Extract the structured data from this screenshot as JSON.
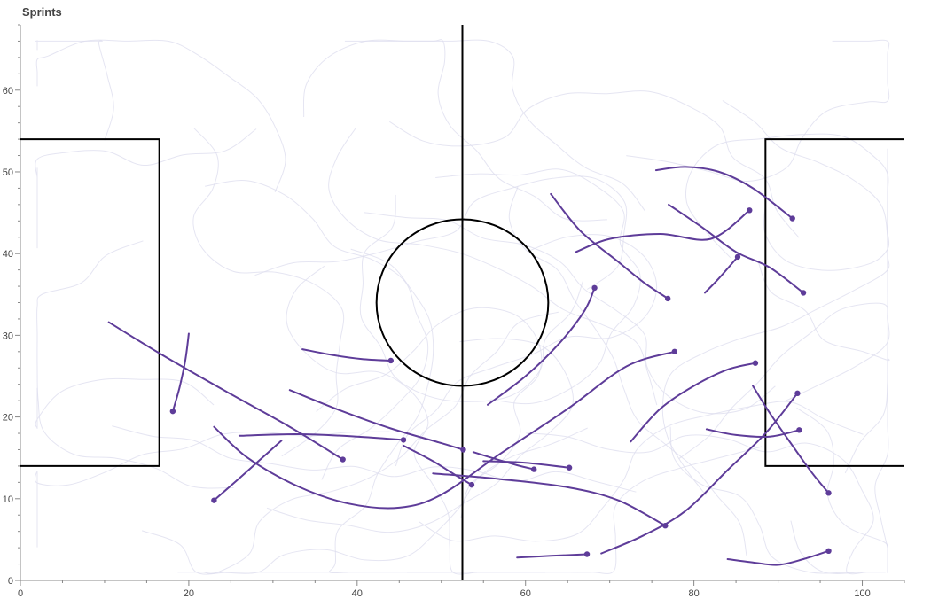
{
  "chart_data": {
    "type": "line",
    "title": "Sprints",
    "xlabel": "",
    "ylabel": "",
    "xlim": [
      0,
      105
    ],
    "ylim": [
      0,
      68
    ],
    "x_ticks": [
      0,
      20,
      40,
      60,
      80,
      100
    ],
    "y_ticks": [
      0,
      10,
      20,
      30,
      40,
      50,
      60
    ],
    "grid": false,
    "legend": "none",
    "colors": {
      "sprint": "#5e3c99",
      "background_tracks": "#dcdcee",
      "pitch_lines": "#000000",
      "axis": "#444444"
    },
    "pitch": {
      "left_box": {
        "x": [
          0,
          16.5
        ],
        "y": [
          14,
          54
        ]
      },
      "right_box": {
        "x": [
          88.5,
          105
        ],
        "y": [
          14,
          54
        ]
      },
      "halfway_x": 52.5,
      "center": {
        "x": 52.5,
        "y": 34
      },
      "circle_radius": 10.2
    },
    "sprints": [
      {
        "points": [
          [
            10.5,
            31.6
          ],
          [
            17,
            27.5
          ],
          [
            25,
            22.8
          ],
          [
            32,
            18.8
          ],
          [
            38.3,
            14.8
          ]
        ]
      },
      {
        "points": [
          [
            20,
            30.2
          ],
          [
            19.6,
            27
          ],
          [
            18.9,
            23.6
          ],
          [
            18.1,
            20.7
          ]
        ]
      },
      {
        "points": [
          [
            33.5,
            28.3
          ],
          [
            37,
            27.6
          ],
          [
            40.5,
            27.1
          ],
          [
            44,
            26.9
          ]
        ]
      },
      {
        "points": [
          [
            32,
            23.3
          ],
          [
            38,
            20.8
          ],
          [
            44,
            18.6
          ],
          [
            50,
            16.8
          ],
          [
            52.6,
            16
          ]
        ]
      },
      {
        "points": [
          [
            26,
            17.7
          ],
          [
            33,
            17.9
          ],
          [
            40,
            17.6
          ],
          [
            45.5,
            17.2
          ]
        ]
      },
      {
        "points": [
          [
            31,
            17.1
          ],
          [
            28.5,
            14.8
          ],
          [
            26,
            12.5
          ],
          [
            23,
            9.8
          ]
        ]
      },
      {
        "points": [
          [
            23,
            18.8
          ],
          [
            27,
            15
          ],
          [
            33,
            11.5
          ],
          [
            39,
            9.4
          ],
          [
            45,
            8.9
          ],
          [
            50,
            10.5
          ],
          [
            57,
            15.5
          ],
          [
            65,
            21
          ],
          [
            72,
            26.2
          ],
          [
            77.7,
            28
          ]
        ]
      },
      {
        "points": [
          [
            45.5,
            16.5
          ],
          [
            49,
            14.6
          ],
          [
            51.5,
            13
          ],
          [
            53.6,
            11.7
          ]
        ]
      },
      {
        "points": [
          [
            49,
            13.1
          ],
          [
            57,
            12.4
          ],
          [
            65,
            11.4
          ],
          [
            71,
            9.8
          ],
          [
            76.6,
            6.7
          ]
        ]
      },
      {
        "points": [
          [
            53.8,
            15.7
          ],
          [
            56,
            15
          ],
          [
            59,
            14.1
          ],
          [
            61,
            13.6
          ]
        ]
      },
      {
        "points": [
          [
            55,
            14.6
          ],
          [
            60,
            14.4
          ],
          [
            65.2,
            13.8
          ]
        ]
      },
      {
        "points": [
          [
            55.5,
            21.5
          ],
          [
            60,
            25
          ],
          [
            64,
            29
          ],
          [
            67,
            33
          ],
          [
            68.2,
            35.8
          ]
        ]
      },
      {
        "points": [
          [
            63,
            47.3
          ],
          [
            66.5,
            42.8
          ],
          [
            71,
            39
          ],
          [
            74,
            36.5
          ],
          [
            76.9,
            34.5
          ]
        ]
      },
      {
        "points": [
          [
            66,
            40.2
          ],
          [
            70,
            41.8
          ],
          [
            76,
            42.4
          ],
          [
            82,
            41.8
          ],
          [
            86.6,
            45.3
          ]
        ]
      },
      {
        "points": [
          [
            75.5,
            50.2
          ],
          [
            79,
            50.6
          ],
          [
            83,
            50
          ],
          [
            87,
            48
          ],
          [
            91.7,
            44.3
          ]
        ]
      },
      {
        "points": [
          [
            77,
            46
          ],
          [
            81,
            43.2
          ],
          [
            85,
            40.2
          ],
          [
            89,
            38.3
          ],
          [
            93,
            35.2
          ]
        ]
      },
      {
        "points": [
          [
            81.3,
            35.2
          ],
          [
            83,
            37
          ],
          [
            85.2,
            39.6
          ]
        ]
      },
      {
        "points": [
          [
            72.5,
            17
          ],
          [
            76,
            21
          ],
          [
            80,
            23.8
          ],
          [
            84,
            25.8
          ],
          [
            87.3,
            26.6
          ]
        ]
      },
      {
        "points": [
          [
            81.5,
            18.5
          ],
          [
            85,
            17.8
          ],
          [
            89,
            17.6
          ],
          [
            92.5,
            18.4
          ]
        ]
      },
      {
        "points": [
          [
            87,
            23.8
          ],
          [
            89,
            20.5
          ],
          [
            91.5,
            16.8
          ],
          [
            94,
            13.2
          ],
          [
            96,
            10.7
          ]
        ]
      },
      {
        "points": [
          [
            69,
            3.3
          ],
          [
            74,
            5.5
          ],
          [
            79,
            8.5
          ],
          [
            84,
            13.5
          ],
          [
            88.5,
            18
          ],
          [
            92.3,
            22.9
          ]
        ]
      },
      {
        "points": [
          [
            59,
            2.8
          ],
          [
            63,
            3
          ],
          [
            67.3,
            3.2
          ]
        ]
      },
      {
        "points": [
          [
            84,
            2.6
          ],
          [
            87,
            2.2
          ],
          [
            90,
            1.9
          ],
          [
            93,
            2.6
          ],
          [
            96,
            3.6
          ]
        ]
      }
    ]
  }
}
